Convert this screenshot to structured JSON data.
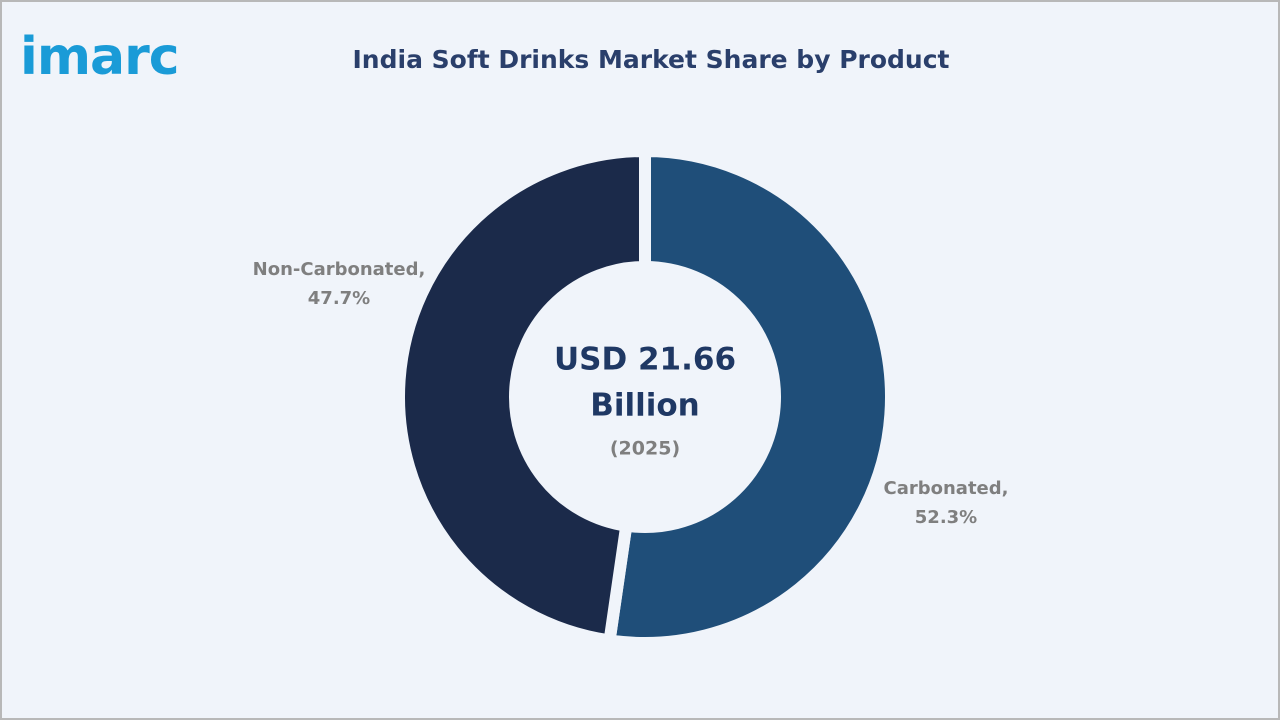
{
  "logo": "imarc",
  "chart_data": {
    "type": "pie",
    "donut": true,
    "title": "India Soft Drinks Market Share by Product",
    "categories": [
      "Carbonated,",
      "Non-Carbonated,"
    ],
    "values": [
      52.3,
      47.7
    ],
    "value_labels": [
      "52.3%",
      "47.7%"
    ],
    "colors": [
      "#1f4e79",
      "#1b2a4a"
    ],
    "center_label": [
      "USD 21.66",
      "Billion"
    ],
    "center_sublabel": "(2025)"
  }
}
